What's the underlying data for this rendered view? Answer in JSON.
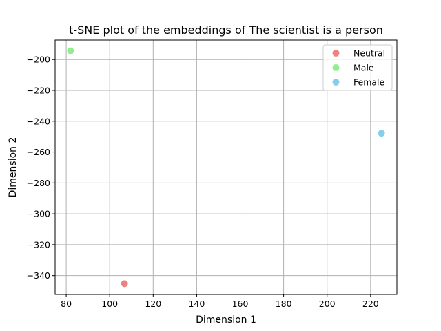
{
  "chart_data": {
    "type": "scatter",
    "title": "t-SNE plot of the embeddings of The scientist is a person",
    "xlabel": "Dimension 1",
    "ylabel": "Dimension 2",
    "xlim": [
      74.9,
      232.1
    ],
    "ylim": [
      -352.2,
      -187.4
    ],
    "xticks": [
      80,
      100,
      120,
      140,
      160,
      180,
      200,
      220
    ],
    "yticks": [
      -340,
      -320,
      -300,
      -280,
      -260,
      -240,
      -220,
      -200
    ],
    "xtick_labels": [
      "80",
      "100",
      "120",
      "140",
      "160",
      "180",
      "200",
      "220"
    ],
    "ytick_labels": [
      "−340",
      "−320",
      "−300",
      "−280",
      "−260",
      "−240",
      "−220",
      "−200"
    ],
    "grid": true,
    "legend_position": "top-right",
    "series": [
      {
        "name": "Neutral",
        "color": "#f08080",
        "points": [
          {
            "x": 106.8,
            "y": -345.2
          }
        ]
      },
      {
        "name": "Male",
        "color": "#90ee90",
        "points": [
          {
            "x": 82.0,
            "y": -194.4
          }
        ]
      },
      {
        "name": "Female",
        "color": "#87ceeb",
        "points": [
          {
            "x": 225.0,
            "y": -247.8
          }
        ]
      }
    ]
  }
}
